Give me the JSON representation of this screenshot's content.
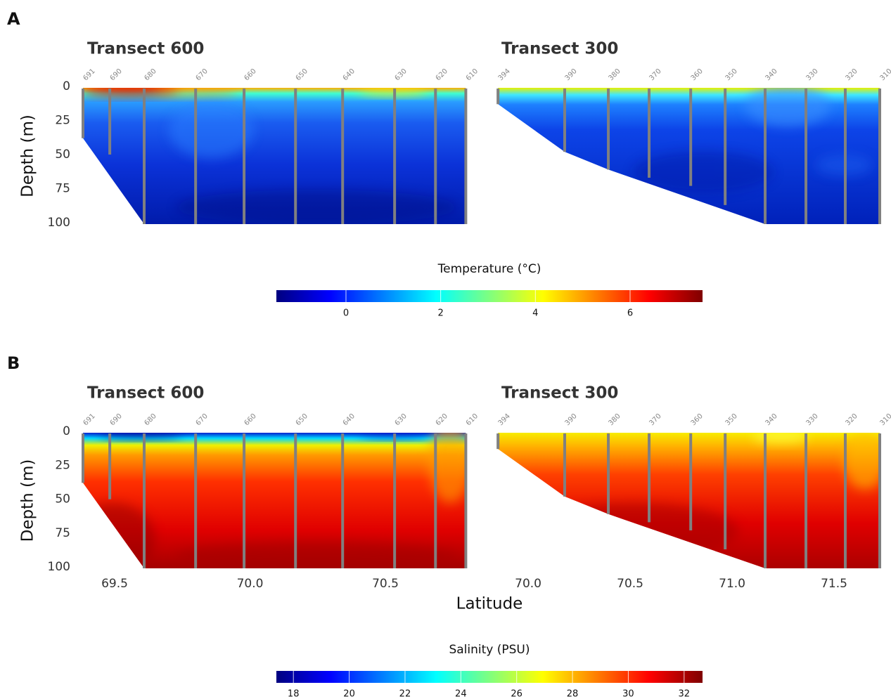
{
  "chart_data": [
    {
      "type": "section",
      "panel_label": "A",
      "title": "Transect 600",
      "ylabel": "Depth (m)",
      "xlim": [
        69.383,
        70.796
      ],
      "ylim": [
        0,
        100
      ],
      "y_reversed": true,
      "yticks": [
        0,
        25,
        50,
        75,
        100
      ],
      "stations": {
        "names": [
          "691",
          "690",
          "680",
          "670",
          "660",
          "650",
          "640",
          "630",
          "620",
          "610"
        ],
        "latitude": [
          69.383,
          69.482,
          69.609,
          69.799,
          69.978,
          70.168,
          70.342,
          70.534,
          70.685,
          70.797
        ],
        "depth": [
          37,
          49,
          100,
          100,
          100,
          100,
          100,
          100,
          100,
          100
        ]
      },
      "colorbar": {
        "label": "Temperature (°C)",
        "lim": [
          -1.47,
          7.53
        ],
        "ticks": [
          0,
          2,
          4,
          6
        ],
        "colors": [
          "#00007f",
          "#0000ff",
          "#007fff",
          "#00ffff",
          "#7fff7f",
          "#ffff00",
          "#ff7f00",
          "#ff0000",
          "#7f0000"
        ]
      }
    },
    {
      "type": "section",
      "title": "Transect 300",
      "xlim": [
        69.848,
        71.724
      ],
      "ylim": [
        0,
        100
      ],
      "y_reversed": true,
      "stations": {
        "names": [
          "394",
          "390",
          "380",
          "370",
          "360",
          "350",
          "340",
          "330",
          "320",
          "310"
        ],
        "latitude": [
          69.852,
          70.179,
          70.393,
          70.593,
          70.797,
          70.966,
          71.162,
          71.362,
          71.555,
          71.724
        ],
        "depth": [
          12,
          47,
          60,
          66,
          72,
          86,
          100,
          100,
          100,
          100
        ]
      }
    },
    {
      "type": "section",
      "panel_label": "B",
      "title": "Transect 600",
      "ylabel": "Depth (m)",
      "xlabel": "Latitude",
      "xlim": [
        69.383,
        70.796
      ],
      "ylim": [
        0,
        100
      ],
      "y_reversed": true,
      "yticks": [
        0,
        25,
        50,
        75,
        100
      ],
      "xticks": [
        69.5,
        {
          "value": 70,
          "label": "70.0"
        },
        70.5
      ],
      "stations": {
        "names": [
          "691",
          "690",
          "680",
          "670",
          "660",
          "650",
          "640",
          "630",
          "620",
          "610"
        ],
        "latitude": [
          69.383,
          69.482,
          69.609,
          69.799,
          69.978,
          70.168,
          70.342,
          70.534,
          70.685,
          70.797
        ],
        "depth": [
          37,
          49,
          100,
          100,
          100,
          100,
          100,
          100,
          100,
          100
        ]
      },
      "colorbar": {
        "label": "Salinity (PSU)",
        "lim": [
          17.39,
          32.66
        ],
        "ticks": [
          18,
          20,
          22,
          24,
          26,
          28,
          30,
          32
        ],
        "colors": [
          "#00007f",
          "#0000ff",
          "#007fff",
          "#00ffff",
          "#7fff7f",
          "#ffff00",
          "#ff7f00",
          "#ff0000",
          "#7f0000"
        ]
      }
    },
    {
      "type": "section",
      "title": "Transect 300",
      "xlim": [
        69.848,
        71.724
      ],
      "ylim": [
        0,
        100
      ],
      "y_reversed": true,
      "xticks": [
        {
          "value": 70,
          "label": "70.0"
        },
        70.5,
        {
          "value": 71,
          "label": "71.0"
        },
        71.5
      ],
      "stations": {
        "names": [
          "394",
          "390",
          "380",
          "370",
          "360",
          "350",
          "340",
          "330",
          "320",
          "310"
        ],
        "latitude": [
          69.852,
          70.179,
          70.393,
          70.593,
          70.797,
          70.966,
          71.162,
          71.362,
          71.555,
          71.724
        ],
        "depth": [
          12,
          47,
          60,
          66,
          72,
          86,
          100,
          100,
          100,
          100
        ]
      }
    }
  ]
}
